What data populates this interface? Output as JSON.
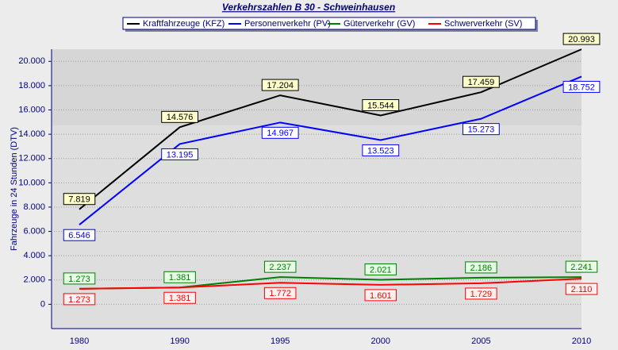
{
  "chart_data": {
    "type": "line",
    "title": "Verkehrszahlen B 30 - Schweinhausen",
    "y_label": "Fahrzeuge in 24 Stunden (DTV)",
    "categories": [
      "1980",
      "1990",
      "1995",
      "2000",
      "2005",
      "2010"
    ],
    "ylim": [
      -2000,
      21000
    ],
    "yticks": [
      0,
      {
        "value": 2000,
        "label": "2.000"
      },
      {
        "value": 4000,
        "label": "4.000"
      },
      {
        "value": 6000,
        "label": "6.000"
      },
      {
        "value": 8000,
        "label": "8.000"
      },
      {
        "value": 10000,
        "label": "10.000"
      },
      {
        "value": 12000,
        "label": "12.000"
      },
      {
        "value": 14000,
        "label": "14.000"
      },
      {
        "value": 16000,
        "label": "16.000"
      },
      {
        "value": 18000,
        "label": "18.000"
      },
      {
        "value": 20000,
        "label": "20.000"
      }
    ],
    "grid": true,
    "series": [
      {
        "name": "Kraftfahrzeuge (KFZ)",
        "color": "#000000",
        "label_fill": "#ffffcc",
        "label_pos": "above",
        "values": [
          7819,
          14576,
          17204,
          15544,
          17459,
          20993
        ],
        "value_labels": [
          "7.819",
          "14.576",
          "17.204",
          "15.544",
          "17.459",
          "20.993"
        ]
      },
      {
        "name": "Personenverkehr (PV)",
        "color": "#0000ff",
        "label_fill": "#ffffff",
        "label_pos": "below",
        "values": [
          6546,
          13195,
          14967,
          13523,
          15273,
          18752
        ],
        "value_labels": [
          "6.546",
          "13.195",
          "14.967",
          "13.523",
          "15.273",
          "18.752"
        ]
      },
      {
        "name": "Güterverkehr (GV)",
        "color": "#008000",
        "label_fill": "#e6ffe6",
        "label_pos": "above",
        "values": [
          1273,
          1381,
          2237,
          2021,
          2186,
          2241
        ],
        "value_labels": [
          "1.273",
          "1.381",
          "2.237",
          "2.021",
          "2.186",
          "2.241"
        ]
      },
      {
        "name": "Schwerverkehr (SV)",
        "color": "#ff0000",
        "label_fill": "#fff0f0",
        "label_pos": "below",
        "values": [
          1273,
          1381,
          1772,
          1601,
          1729,
          2110
        ],
        "value_labels": [
          "1.273",
          "1.381",
          "1.772",
          "1.601",
          "1.729",
          "2.110"
        ]
      }
    ]
  }
}
